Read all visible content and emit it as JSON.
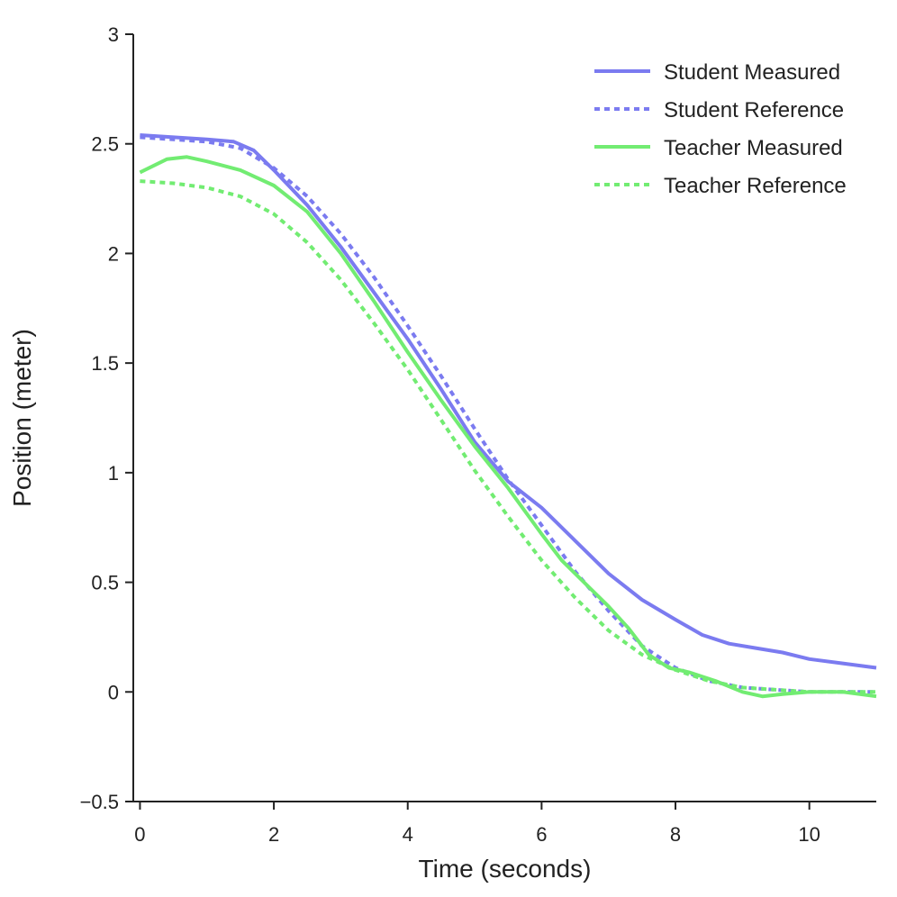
{
  "chart_data": {
    "type": "line",
    "title": "",
    "xlabel": "Time (seconds)",
    "ylabel": "Position (meter)",
    "xlim": [
      -0.1,
      11
    ],
    "ylim": [
      -0.5,
      3
    ],
    "xticks": [
      0,
      2,
      4,
      6,
      8,
      10
    ],
    "xtick_labels": [
      "0",
      "2",
      "4",
      "6",
      "8",
      "10"
    ],
    "yticks": [
      -0.5,
      0,
      0.5,
      1,
      1.5,
      2,
      2.5,
      3
    ],
    "ytick_labels": [
      "−0.5",
      "0",
      "0.5",
      "1",
      "1.5",
      "2",
      "2.5",
      "3"
    ],
    "grid": false,
    "legend_position": "top-right",
    "series": [
      {
        "name": "Student Measured",
        "color": "#7b7bf0",
        "style": "solid",
        "x": [
          0,
          0.5,
          1.0,
          1.4,
          1.7,
          2.0,
          2.5,
          3.0,
          3.5,
          4.0,
          4.5,
          5.0,
          5.5,
          6.0,
          6.5,
          7.0,
          7.5,
          8.0,
          8.4,
          8.8,
          9.2,
          9.6,
          10.0,
          10.5,
          11.0
        ],
        "y": [
          2.54,
          2.53,
          2.52,
          2.51,
          2.47,
          2.38,
          2.22,
          2.03,
          1.82,
          1.61,
          1.38,
          1.14,
          0.96,
          0.84,
          0.69,
          0.54,
          0.42,
          0.33,
          0.26,
          0.22,
          0.2,
          0.18,
          0.15,
          0.13,
          0.11
        ]
      },
      {
        "name": "Student Reference",
        "color": "#7b7bf0",
        "style": "dotted",
        "x": [
          0,
          0.5,
          1.0,
          1.5,
          2.0,
          2.5,
          3.0,
          3.5,
          4.0,
          4.5,
          5.0,
          5.5,
          6.0,
          6.5,
          7.0,
          7.5,
          8.0,
          8.5,
          9.0,
          9.5,
          10.0,
          10.5,
          11.0
        ],
        "y": [
          2.53,
          2.52,
          2.51,
          2.48,
          2.39,
          2.26,
          2.09,
          1.89,
          1.67,
          1.44,
          1.2,
          0.97,
          0.76,
          0.55,
          0.37,
          0.21,
          0.11,
          0.05,
          0.02,
          0.01,
          0.0,
          0.0,
          0.0
        ]
      },
      {
        "name": "Teacher Measured",
        "color": "#72ec72",
        "style": "solid",
        "x": [
          0,
          0.4,
          0.7,
          1.0,
          1.5,
          2.0,
          2.5,
          3.0,
          3.5,
          4.0,
          4.5,
          5.0,
          5.5,
          6.0,
          6.3,
          6.7,
          7.0,
          7.3,
          7.6,
          7.9,
          8.2,
          8.6,
          9.0,
          9.3,
          9.6,
          10.0,
          10.5,
          11.0
        ],
        "y": [
          2.37,
          2.43,
          2.44,
          2.42,
          2.38,
          2.31,
          2.19,
          2.0,
          1.78,
          1.55,
          1.33,
          1.12,
          0.93,
          0.72,
          0.6,
          0.48,
          0.39,
          0.29,
          0.17,
          0.11,
          0.09,
          0.05,
          0.0,
          -0.02,
          -0.01,
          0.0,
          0.0,
          -0.02
        ]
      },
      {
        "name": "Teacher Reference",
        "color": "#72ec72",
        "style": "dotted",
        "x": [
          0,
          0.5,
          1.0,
          1.5,
          2.0,
          2.5,
          3.0,
          3.5,
          4.0,
          4.5,
          5.0,
          5.5,
          6.0,
          6.5,
          7.0,
          7.5,
          8.0,
          8.5,
          9.0,
          9.5,
          10.0,
          10.5,
          11.0
        ],
        "y": [
          2.33,
          2.32,
          2.3,
          2.26,
          2.18,
          2.05,
          1.88,
          1.68,
          1.47,
          1.24,
          1.01,
          0.8,
          0.6,
          0.43,
          0.28,
          0.17,
          0.1,
          0.05,
          0.02,
          0.01,
          0.0,
          0.0,
          0.0
        ]
      }
    ]
  }
}
